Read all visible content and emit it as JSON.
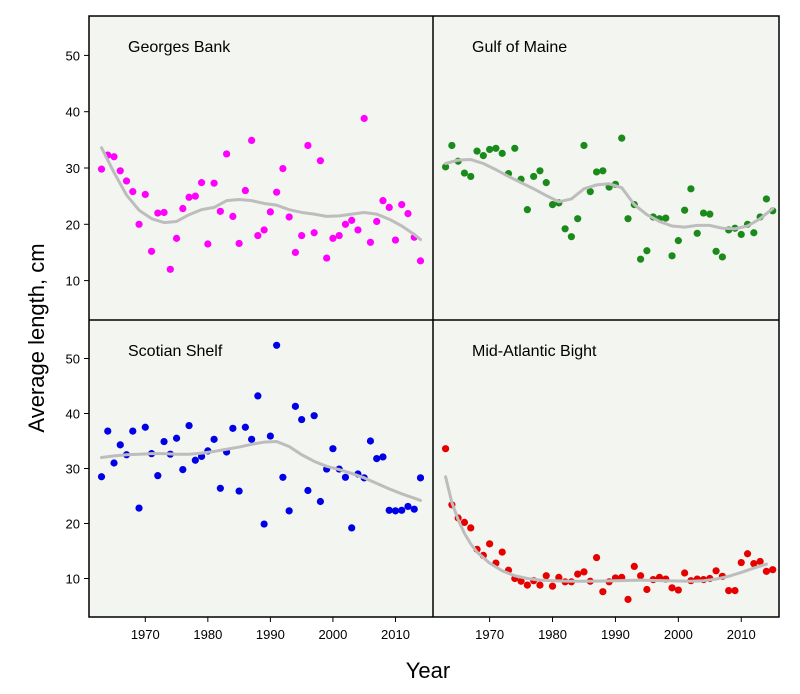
{
  "chart_data": [
    {
      "type": "scatter",
      "title": "Georges Bank",
      "color": "#ff00ff",
      "xlim": [
        1961,
        2016
      ],
      "ylim": [
        3,
        57
      ],
      "points": [
        [
          1963,
          29.8
        ],
        [
          1964,
          32.3
        ],
        [
          1965,
          32.0
        ],
        [
          1966,
          29.5
        ],
        [
          1967,
          27.7
        ],
        [
          1968,
          25.8
        ],
        [
          1969,
          20.0
        ],
        [
          1970,
          25.3
        ],
        [
          1971,
          15.2
        ],
        [
          1972,
          22.0
        ],
        [
          1973,
          22.1
        ],
        [
          1974,
          12.0
        ],
        [
          1975,
          17.5
        ],
        [
          1976,
          22.8
        ],
        [
          1977,
          24.8
        ],
        [
          1978,
          25.0
        ],
        [
          1979,
          27.4
        ],
        [
          1980,
          16.5
        ],
        [
          1981,
          27.3
        ],
        [
          1982,
          22.3
        ],
        [
          1983,
          32.5
        ],
        [
          1984,
          21.4
        ],
        [
          1985,
          16.6
        ],
        [
          1986,
          26.0
        ],
        [
          1987,
          34.9
        ],
        [
          1988,
          18.0
        ],
        [
          1989,
          19.0
        ],
        [
          1990,
          22.2
        ],
        [
          1991,
          25.7
        ],
        [
          1992,
          29.9
        ],
        [
          1993,
          21.3
        ],
        [
          1994,
          15.0
        ],
        [
          1995,
          18.0
        ],
        [
          1996,
          34.0
        ],
        [
          1997,
          18.5
        ],
        [
          1998,
          31.3
        ],
        [
          1999,
          14.0
        ],
        [
          2000,
          17.5
        ],
        [
          2001,
          18.0
        ],
        [
          2002,
          20.0
        ],
        [
          2003,
          20.7
        ],
        [
          2004,
          19.0
        ],
        [
          2005,
          38.8
        ],
        [
          2006,
          16.8
        ],
        [
          2007,
          20.5
        ],
        [
          2008,
          24.2
        ],
        [
          2009,
          23.0
        ],
        [
          2010,
          17.2
        ],
        [
          2011,
          23.5
        ],
        [
          2012,
          21.9
        ],
        [
          2013,
          17.7
        ],
        [
          2014,
          13.5
        ]
      ],
      "smooth": [
        [
          1963,
          33.6
        ],
        [
          1965,
          29.2
        ],
        [
          1967,
          25.2
        ],
        [
          1969,
          22.5
        ],
        [
          1971,
          21.0
        ],
        [
          1973,
          20.3
        ],
        [
          1975,
          20.5
        ],
        [
          1977,
          21.7
        ],
        [
          1979,
          22.6
        ],
        [
          1981,
          23.0
        ],
        [
          1983,
          24.2
        ],
        [
          1985,
          24.4
        ],
        [
          1987,
          24.2
        ],
        [
          1989,
          23.7
        ],
        [
          1991,
          23.4
        ],
        [
          1993,
          22.6
        ],
        [
          1995,
          22.1
        ],
        [
          1997,
          21.8
        ],
        [
          1999,
          21.4
        ],
        [
          2001,
          21.5
        ],
        [
          2003,
          21.8
        ],
        [
          2005,
          22.1
        ],
        [
          2007,
          21.8
        ],
        [
          2009,
          20.9
        ],
        [
          2011,
          19.7
        ],
        [
          2013,
          18.2
        ],
        [
          2014,
          17.3
        ]
      ]
    },
    {
      "type": "scatter",
      "title": "Gulf of Maine",
      "color": "#1a8a1a",
      "xlim": [
        1961,
        2016
      ],
      "ylim": [
        3,
        57
      ],
      "points": [
        [
          1963,
          30.2
        ],
        [
          1964,
          34.0
        ],
        [
          1965,
          31.2
        ],
        [
          1966,
          29.1
        ],
        [
          1967,
          28.5
        ],
        [
          1968,
          33.0
        ],
        [
          1969,
          32.2
        ],
        [
          1970,
          33.3
        ],
        [
          1971,
          33.5
        ],
        [
          1972,
          32.6
        ],
        [
          1973,
          29.0
        ],
        [
          1974,
          33.5
        ],
        [
          1975,
          28.0
        ],
        [
          1976,
          22.6
        ],
        [
          1977,
          28.5
        ],
        [
          1978,
          29.5
        ],
        [
          1979,
          27.4
        ],
        [
          1980,
          23.5
        ],
        [
          1981,
          23.8
        ],
        [
          1982,
          19.2
        ],
        [
          1983,
          17.8
        ],
        [
          1984,
          21.0
        ],
        [
          1985,
          34.0
        ],
        [
          1986,
          25.8
        ],
        [
          1987,
          29.3
        ],
        [
          1988,
          29.5
        ],
        [
          1989,
          26.6
        ],
        [
          1990,
          27.1
        ],
        [
          1991,
          35.3
        ],
        [
          1992,
          21.0
        ],
        [
          1993,
          23.5
        ],
        [
          1994,
          13.8
        ],
        [
          1995,
          15.3
        ],
        [
          1996,
          21.3
        ],
        [
          1997,
          21.0
        ],
        [
          1998,
          21.1
        ],
        [
          1999,
          14.4
        ],
        [
          2000,
          17.1
        ],
        [
          2001,
          22.5
        ],
        [
          2002,
          26.3
        ],
        [
          2003,
          18.4
        ],
        [
          2004,
          22.0
        ],
        [
          2005,
          21.8
        ],
        [
          2006,
          15.2
        ],
        [
          2007,
          14.2
        ],
        [
          2008,
          19.0
        ],
        [
          2009,
          19.3
        ],
        [
          2010,
          18.2
        ],
        [
          2011,
          20.0
        ],
        [
          2012,
          18.5
        ],
        [
          2013,
          21.3
        ],
        [
          2014,
          24.5
        ],
        [
          2015,
          22.4
        ]
      ],
      "smooth": [
        [
          1963,
          30.8
        ],
        [
          1965,
          31.4
        ],
        [
          1967,
          31.5
        ],
        [
          1969,
          30.8
        ],
        [
          1971,
          29.7
        ],
        [
          1973,
          28.5
        ],
        [
          1975,
          27.4
        ],
        [
          1977,
          26.3
        ],
        [
          1979,
          25.1
        ],
        [
          1981,
          24.0
        ],
        [
          1983,
          24.5
        ],
        [
          1985,
          26.3
        ],
        [
          1987,
          27.0
        ],
        [
          1989,
          27.2
        ],
        [
          1991,
          26.5
        ],
        [
          1993,
          23.5
        ],
        [
          1995,
          21.7
        ],
        [
          1997,
          20.5
        ],
        [
          1999,
          19.7
        ],
        [
          2001,
          19.5
        ],
        [
          2003,
          19.8
        ],
        [
          2005,
          19.8
        ],
        [
          2007,
          19.3
        ],
        [
          2009,
          19.2
        ],
        [
          2011,
          19.7
        ],
        [
          2013,
          21.0
        ],
        [
          2015,
          22.8
        ]
      ]
    },
    {
      "type": "scatter",
      "title": "Scotian Shelf",
      "color": "#0000e6",
      "xlim": [
        1961,
        2016
      ],
      "ylim": [
        3,
        57
      ],
      "points": [
        [
          1963,
          28.5
        ],
        [
          1964,
          36.8
        ],
        [
          1965,
          31.0
        ],
        [
          1966,
          34.3
        ],
        [
          1967,
          32.5
        ],
        [
          1968,
          36.8
        ],
        [
          1969,
          22.8
        ],
        [
          1970,
          37.5
        ],
        [
          1971,
          32.7
        ],
        [
          1972,
          28.7
        ],
        [
          1973,
          34.9
        ],
        [
          1974,
          32.6
        ],
        [
          1975,
          35.5
        ],
        [
          1976,
          29.8
        ],
        [
          1977,
          37.8
        ],
        [
          1978,
          31.5
        ],
        [
          1979,
          32.2
        ],
        [
          1980,
          33.2
        ],
        [
          1981,
          35.3
        ],
        [
          1982,
          26.4
        ],
        [
          1983,
          33.0
        ],
        [
          1984,
          37.3
        ],
        [
          1985,
          25.9
        ],
        [
          1986,
          37.5
        ],
        [
          1987,
          35.3
        ],
        [
          1988,
          43.2
        ],
        [
          1989,
          19.9
        ],
        [
          1990,
          35.9
        ],
        [
          1991,
          52.4
        ],
        [
          1992,
          28.4
        ],
        [
          1993,
          22.3
        ],
        [
          1994,
          41.3
        ],
        [
          1995,
          38.9
        ],
        [
          1996,
          26.0
        ],
        [
          1997,
          39.6
        ],
        [
          1998,
          24.0
        ],
        [
          1999,
          29.9
        ],
        [
          2000,
          33.6
        ],
        [
          2001,
          29.9
        ],
        [
          2002,
          28.4
        ],
        [
          2003,
          19.2
        ],
        [
          2004,
          29.0
        ],
        [
          2005,
          28.3
        ],
        [
          2006,
          35.0
        ],
        [
          2007,
          31.8
        ],
        [
          2008,
          32.1
        ],
        [
          2009,
          22.4
        ],
        [
          2010,
          22.3
        ],
        [
          2011,
          22.4
        ],
        [
          2012,
          23.1
        ],
        [
          2013,
          22.6
        ],
        [
          2014,
          28.3
        ]
      ],
      "smooth": [
        [
          1963,
          32.0
        ],
        [
          1965,
          32.3
        ],
        [
          1967,
          32.5
        ],
        [
          1969,
          32.6
        ],
        [
          1971,
          32.7
        ],
        [
          1973,
          32.7
        ],
        [
          1975,
          32.6
        ],
        [
          1977,
          32.6
        ],
        [
          1979,
          32.8
        ],
        [
          1981,
          33.1
        ],
        [
          1983,
          33.5
        ],
        [
          1985,
          33.9
        ],
        [
          1987,
          34.4
        ],
        [
          1989,
          34.8
        ],
        [
          1991,
          34.9
        ],
        [
          1993,
          34.0
        ],
        [
          1995,
          32.5
        ],
        [
          1997,
          31.3
        ],
        [
          1999,
          30.4
        ],
        [
          2001,
          29.8
        ],
        [
          2003,
          29.1
        ],
        [
          2005,
          28.3
        ],
        [
          2007,
          27.3
        ],
        [
          2009,
          26.3
        ],
        [
          2011,
          25.4
        ],
        [
          2013,
          24.6
        ],
        [
          2014,
          24.2
        ]
      ]
    },
    {
      "type": "scatter",
      "title": "Mid-Atlantic Bight",
      "color": "#e60000",
      "xlim": [
        1961,
        2016
      ],
      "ylim": [
        3,
        57
      ],
      "points": [
        [
          1963,
          33.6
        ],
        [
          1964,
          23.4
        ],
        [
          1965,
          21.0
        ],
        [
          1966,
          20.2
        ],
        [
          1967,
          19.2
        ],
        [
          1968,
          15.3
        ],
        [
          1969,
          14.2
        ],
        [
          1970,
          16.3
        ],
        [
          1971,
          12.8
        ],
        [
          1972,
          14.8
        ],
        [
          1973,
          11.5
        ],
        [
          1974,
          10.0
        ],
        [
          1975,
          9.5
        ],
        [
          1976,
          8.8
        ],
        [
          1977,
          9.6
        ],
        [
          1978,
          8.8
        ],
        [
          1979,
          10.5
        ],
        [
          1980,
          8.6
        ],
        [
          1981,
          10.2
        ],
        [
          1982,
          9.4
        ],
        [
          1983,
          9.4
        ],
        [
          1984,
          10.8
        ],
        [
          1985,
          11.2
        ],
        [
          1986,
          9.5
        ],
        [
          1987,
          13.8
        ],
        [
          1988,
          7.6
        ],
        [
          1989,
          9.4
        ],
        [
          1990,
          10.1
        ],
        [
          1991,
          10.2
        ],
        [
          1992,
          6.2
        ],
        [
          1993,
          12.2
        ],
        [
          1994,
          10.5
        ],
        [
          1995,
          8.0
        ],
        [
          1996,
          9.8
        ],
        [
          1997,
          10.2
        ],
        [
          1998,
          9.9
        ],
        [
          1999,
          8.3
        ],
        [
          2000,
          7.9
        ],
        [
          2001,
          11.0
        ],
        [
          2002,
          9.6
        ],
        [
          2003,
          9.9
        ],
        [
          2004,
          9.8
        ],
        [
          2005,
          10.0
        ],
        [
          2006,
          11.4
        ],
        [
          2007,
          10.4
        ],
        [
          2008,
          7.8
        ],
        [
          2009,
          7.8
        ],
        [
          2010,
          12.9
        ],
        [
          2011,
          14.5
        ],
        [
          2012,
          12.7
        ],
        [
          2013,
          13.1
        ],
        [
          2014,
          11.3
        ],
        [
          2015,
          11.6
        ]
      ],
      "smooth": [
        [
          1963,
          28.5
        ],
        [
          1964,
          23.8
        ],
        [
          1965,
          20.7
        ],
        [
          1966,
          18.2
        ],
        [
          1967,
          16.3
        ],
        [
          1968,
          14.8
        ],
        [
          1970,
          12.8
        ],
        [
          1972,
          11.4
        ],
        [
          1974,
          10.5
        ],
        [
          1976,
          10.0
        ],
        [
          1978,
          9.7
        ],
        [
          1980,
          9.6
        ],
        [
          1983,
          9.5
        ],
        [
          1986,
          9.5
        ],
        [
          1990,
          9.6
        ],
        [
          1994,
          9.7
        ],
        [
          1998,
          9.6
        ],
        [
          2002,
          9.5
        ],
        [
          2004,
          9.6
        ],
        [
          2006,
          9.9
        ],
        [
          2008,
          10.4
        ],
        [
          2010,
          11.1
        ],
        [
          2012,
          11.9
        ],
        [
          2014,
          12.6
        ]
      ]
    }
  ],
  "shared": {
    "x_ticks": [
      1970,
      1980,
      1990,
      2000,
      2010
    ],
    "y_ticks": [
      10,
      20,
      30,
      40,
      50
    ],
    "xlabel": "Year",
    "ylabel": "Average length, cm"
  }
}
